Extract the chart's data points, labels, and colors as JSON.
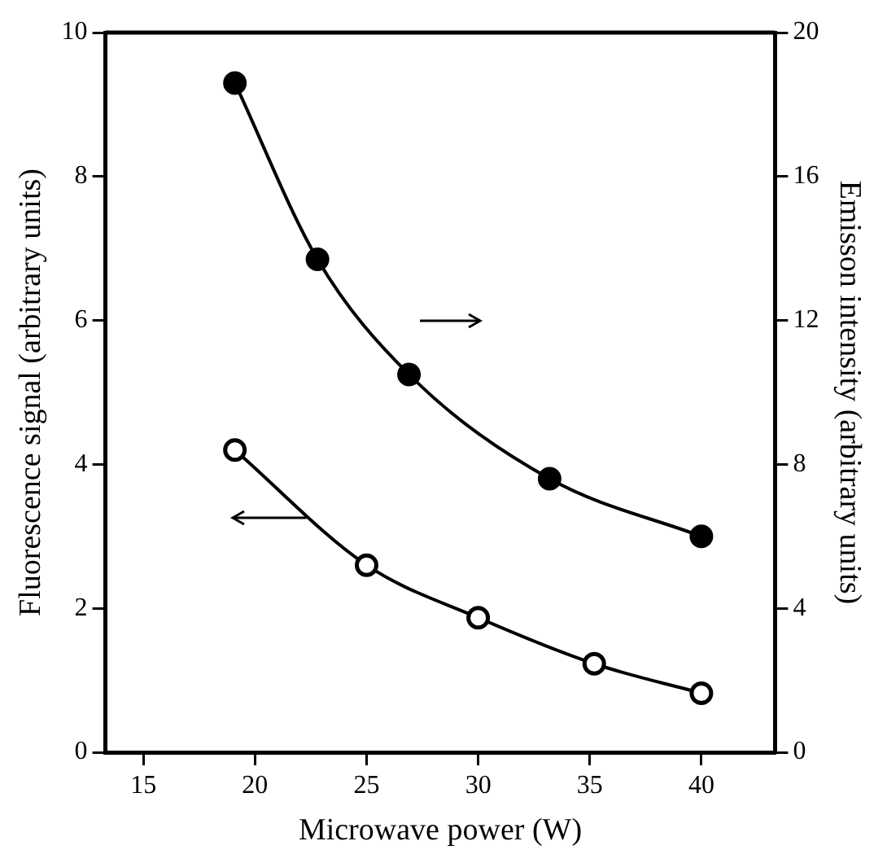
{
  "chart_data": {
    "type": "line",
    "xlabel": "Microwave power (W)",
    "ylabel": "Fluorescence signal (arbitrary units)",
    "y2label": "Emisson intensity (arbitrary units)",
    "xlim": [
      13.3,
      43.3
    ],
    "xticks": [
      15,
      20,
      25,
      30,
      35,
      40
    ],
    "ylim": [
      0,
      10
    ],
    "yticks": [
      0,
      2,
      4,
      6,
      8,
      10
    ],
    "y2lim": [
      0,
      20
    ],
    "y2ticks": [
      0,
      4,
      8,
      12,
      16,
      20
    ],
    "grid": false,
    "legend": false,
    "marker": "circle",
    "line_style": "solid",
    "series": [
      {
        "color": "#000000",
        "x": [
          19.1,
          25,
          30,
          35.2,
          40
        ],
        "values": [
          4.2,
          2.6,
          1.87,
          1.23,
          0.82
        ]
      },
      {
        "color": "#000000",
        "axis": "y2",
        "x": [
          19.1,
          22.8,
          26.9,
          33.2,
          40
        ],
        "values": [
          18.6,
          13.7,
          10.5,
          7.6,
          6.0
        ]
      }
    ]
  }
}
